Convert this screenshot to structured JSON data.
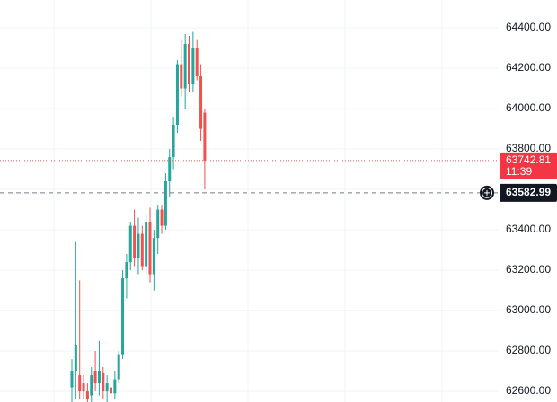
{
  "chart_data": {
    "type": "candlestick",
    "categories": [
      null,
      null,
      null,
      null,
      null,
      null,
      null,
      null,
      null,
      null,
      null,
      null,
      null,
      null,
      null,
      null,
      null,
      null,
      null,
      null,
      null,
      null,
      null,
      null,
      null,
      null,
      null,
      null,
      null,
      null,
      null,
      null,
      null,
      null,
      null
    ],
    "open": [
      62620,
      62700,
      62680,
      62640,
      62600,
      62580,
      62700,
      62640,
      62690,
      62600,
      62620,
      62590,
      62660,
      62780,
      63160,
      63240,
      63420,
      63260,
      63380,
      63220,
      63440,
      63180,
      63360,
      63500,
      63420,
      63640,
      63760,
      63920,
      64220,
      64100,
      64320,
      64120,
      64300,
      64160,
      63980
    ],
    "high": [
      62760,
      63340,
      63150,
      62680,
      62640,
      62720,
      62800,
      62850,
      62720,
      62680,
      62660,
      62700,
      62800,
      63200,
      63280,
      63440,
      63500,
      63460,
      63420,
      63480,
      63510,
      63400,
      63520,
      63520,
      63680,
      63800,
      63960,
      64240,
      64340,
      64370,
      64360,
      64380,
      64340,
      64220,
      64000
    ],
    "low": [
      62540,
      62560,
      62560,
      62560,
      62540,
      62540,
      62600,
      62580,
      62560,
      62540,
      62560,
      62560,
      62640,
      62760,
      63060,
      63200,
      63220,
      63180,
      63200,
      63180,
      63140,
      63100,
      63280,
      63380,
      63400,
      63560,
      63700,
      63880,
      64060,
      64000,
      64080,
      64080,
      64140,
      63840,
      63600
    ],
    "close": [
      62700,
      62830,
      62600,
      62600,
      62560,
      62680,
      62640,
      62700,
      62600,
      62640,
      62590,
      62660,
      62780,
      63160,
      63240,
      63420,
      63260,
      63380,
      63220,
      63440,
      63180,
      63360,
      63500,
      63420,
      63640,
      63760,
      63920,
      64220,
      64100,
      64320,
      64120,
      64300,
      64160,
      63900,
      63742.81
    ],
    "up_color": "#26a69a",
    "down_color": "#ef5350",
    "ylim": [
      62547,
      64538
    ],
    "yticks": [
      {
        "value": 62600,
        "label": "62600.00"
      },
      {
        "value": 62800,
        "label": "62800.00"
      },
      {
        "value": 63000,
        "label": "63000.00"
      },
      {
        "value": 63200,
        "label": "63200.00"
      },
      {
        "value": 63400,
        "label": "63400.00"
      },
      {
        "value": 63600,
        "label": "63600.00"
      },
      {
        "value": 63800,
        "label": "63800.00"
      },
      {
        "value": 64000,
        "label": "64000.00"
      },
      {
        "value": 64200,
        "label": "64200.00"
      },
      {
        "value": 64400,
        "label": "64400.00"
      }
    ],
    "grid": true,
    "last_price": {
      "value": 63742.81,
      "label": "63742.81",
      "countdown": "11:39"
    },
    "crosshair": {
      "value": 63582.99,
      "label": "63582.99"
    }
  }
}
